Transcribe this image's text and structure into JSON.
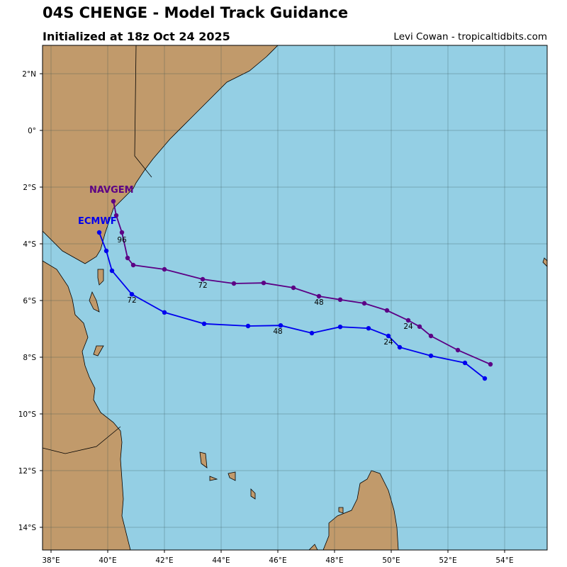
{
  "header": {
    "title": "04S CHENGE - Model Track Guidance",
    "subtitle": "Initialized at 18z Oct 24 2025",
    "credit": "Levi Cowan - tropicaltidbits.com"
  },
  "colors": {
    "ocean": "#94cfe4",
    "land": "#c19a6b",
    "grid": "#2f4f4f"
  },
  "map": {
    "lon_range": [
      37.7,
      55.5
    ],
    "lat_range": [
      -14.8,
      3.0
    ],
    "lon_ticks": [
      {
        "value": 38,
        "label": "38°E"
      },
      {
        "value": 40,
        "label": "40°E"
      },
      {
        "value": 42,
        "label": "42°E"
      },
      {
        "value": 44,
        "label": "44°E"
      },
      {
        "value": 46,
        "label": "46°E"
      },
      {
        "value": 48,
        "label": "48°E"
      },
      {
        "value": 50,
        "label": "50°E"
      },
      {
        "value": 52,
        "label": "52°E"
      },
      {
        "value": 54,
        "label": "54°E"
      }
    ],
    "lat_ticks": [
      {
        "value": 2,
        "label": "2°N"
      },
      {
        "value": 0,
        "label": "0°"
      },
      {
        "value": -2,
        "label": "2°S"
      },
      {
        "value": -4,
        "label": "4°S"
      },
      {
        "value": -6,
        "label": "6°S"
      },
      {
        "value": -8,
        "label": "8°S"
      },
      {
        "value": -10,
        "label": "10°S"
      },
      {
        "value": -12,
        "label": "12°S"
      },
      {
        "value": -14,
        "label": "14°S"
      }
    ],
    "coastline": [
      [
        37.7,
        -3.55
      ],
      [
        38.4,
        -4.25
      ],
      [
        39.2,
        -4.7
      ],
      [
        39.6,
        -4.45
      ],
      [
        39.75,
        -4.2
      ],
      [
        39.9,
        -3.65
      ],
      [
        40.05,
        -3.2
      ],
      [
        40.2,
        -2.75
      ],
      [
        40.55,
        -2.4
      ],
      [
        40.9,
        -2.05
      ],
      [
        41.0,
        -1.85
      ],
      [
        41.3,
        -1.4
      ],
      [
        41.6,
        -1.0
      ],
      [
        42.2,
        -0.3
      ],
      [
        42.9,
        0.4
      ],
      [
        43.5,
        1.0
      ],
      [
        44.2,
        1.7
      ],
      [
        45.0,
        2.1
      ],
      [
        45.6,
        2.6
      ],
      [
        46.0,
        3.0
      ],
      [
        37.7,
        3.0
      ]
    ],
    "coastline_south": [
      [
        37.7,
        -4.6
      ],
      [
        38.2,
        -4.9
      ],
      [
        38.6,
        -5.5
      ],
      [
        38.75,
        -5.95
      ],
      [
        38.85,
        -6.5
      ],
      [
        39.15,
        -6.8
      ],
      [
        39.3,
        -7.3
      ],
      [
        39.1,
        -7.8
      ],
      [
        39.2,
        -8.3
      ],
      [
        39.35,
        -8.7
      ],
      [
        39.55,
        -9.1
      ],
      [
        39.5,
        -9.5
      ],
      [
        39.75,
        -9.95
      ],
      [
        40.2,
        -10.3
      ],
      [
        40.45,
        -10.6
      ],
      [
        40.5,
        -11.0
      ],
      [
        40.45,
        -11.6
      ],
      [
        40.5,
        -12.3
      ],
      [
        40.55,
        -13.0
      ],
      [
        40.5,
        -13.6
      ],
      [
        40.65,
        -14.2
      ],
      [
        40.8,
        -14.8
      ],
      [
        37.7,
        -14.8
      ]
    ],
    "islands": [
      [
        [
          39.65,
          -4.9
        ],
        [
          39.85,
          -4.9
        ],
        [
          39.85,
          -5.3
        ],
        [
          39.7,
          -5.45
        ],
        [
          39.65,
          -5.2
        ]
      ],
      [
        [
          39.45,
          -5.7
        ],
        [
          39.6,
          -6.0
        ],
        [
          39.7,
          -6.4
        ],
        [
          39.5,
          -6.3
        ],
        [
          39.35,
          -6.0
        ]
      ],
      [
        [
          39.6,
          -7.6
        ],
        [
          39.85,
          -7.6
        ],
        [
          39.65,
          -7.95
        ],
        [
          39.5,
          -7.9
        ]
      ],
      [
        [
          43.25,
          -11.35
        ],
        [
          43.45,
          -11.4
        ],
        [
          43.5,
          -11.9
        ],
        [
          43.3,
          -11.75
        ]
      ],
      [
        [
          43.6,
          -12.2
        ],
        [
          43.85,
          -12.3
        ],
        [
          43.6,
          -12.35
        ]
      ],
      [
        [
          44.25,
          -12.1
        ],
        [
          44.5,
          -12.05
        ],
        [
          44.5,
          -12.35
        ],
        [
          44.3,
          -12.25
        ]
      ],
      [
        [
          45.05,
          -12.65
        ],
        [
          45.2,
          -12.8
        ],
        [
          45.2,
          -13.0
        ],
        [
          45.05,
          -12.9
        ]
      ],
      [
        [
          48.15,
          -13.3
        ],
        [
          48.3,
          -13.3
        ],
        [
          48.3,
          -13.5
        ],
        [
          48.15,
          -13.45
        ]
      ],
      [
        [
          49.3,
          -12.0
        ],
        [
          49.6,
          -12.1
        ],
        [
          49.9,
          -12.7
        ],
        [
          50.1,
          -13.4
        ],
        [
          50.2,
          -14.0
        ],
        [
          50.25,
          -14.8
        ],
        [
          47.6,
          -14.8
        ],
        [
          47.8,
          -14.3
        ],
        [
          47.8,
          -13.85
        ],
        [
          48.1,
          -13.6
        ],
        [
          48.6,
          -13.4
        ],
        [
          48.8,
          -13.0
        ],
        [
          48.9,
          -12.45
        ],
        [
          49.15,
          -12.3
        ]
      ],
      [
        [
          47.1,
          -14.8
        ],
        [
          47.3,
          -14.6
        ],
        [
          47.4,
          -14.8
        ]
      ],
      [
        [
          55.4,
          -4.5
        ],
        [
          55.5,
          -4.6
        ],
        [
          55.5,
          -4.8
        ],
        [
          55.35,
          -4.65
        ]
      ]
    ],
    "borders": [
      [
        [
          41.0,
          3.0
        ],
        [
          40.95,
          -0.9
        ],
        [
          41.55,
          -1.65
        ]
      ],
      [
        [
          37.7,
          -11.2
        ],
        [
          38.5,
          -11.4
        ],
        [
          39.6,
          -11.15
        ],
        [
          40.45,
          -10.45
        ]
      ]
    ]
  },
  "tracks": [
    {
      "name": "NAVGEM",
      "color": "#5c0085",
      "label_pos": [
        39.35,
        -2.2
      ],
      "points": [
        [
          40.2,
          -2.5
        ],
        [
          40.3,
          -3.0
        ],
        [
          40.5,
          -3.6
        ],
        [
          40.7,
          -4.5
        ],
        [
          40.9,
          -4.75
        ],
        [
          42.0,
          -4.9
        ],
        [
          43.35,
          -5.25
        ],
        [
          44.45,
          -5.4
        ],
        [
          45.5,
          -5.38
        ],
        [
          46.55,
          -5.55
        ],
        [
          47.45,
          -5.85
        ],
        [
          48.2,
          -5.97
        ],
        [
          49.05,
          -6.1
        ],
        [
          49.85,
          -6.35
        ],
        [
          50.6,
          -6.7
        ],
        [
          51.0,
          -6.92
        ],
        [
          51.4,
          -7.25
        ],
        [
          52.35,
          -7.75
        ],
        [
          53.5,
          -8.25
        ]
      ],
      "time_labels": [
        {
          "text": "96",
          "lon": 40.5,
          "lat": -3.95
        },
        {
          "text": "72",
          "lon": 43.35,
          "lat": -5.55
        },
        {
          "text": "48",
          "lon": 47.45,
          "lat": -6.15
        },
        {
          "text": "24",
          "lon": 50.6,
          "lat": -7.0
        }
      ]
    },
    {
      "name": "ECMWF",
      "color": "#0000ee",
      "label_pos": [
        38.95,
        -3.3
      ],
      "points": [
        [
          39.7,
          -3.6
        ],
        [
          39.95,
          -4.25
        ],
        [
          40.15,
          -4.95
        ],
        [
          40.85,
          -5.78
        ],
        [
          42.0,
          -6.42
        ],
        [
          43.4,
          -6.82
        ],
        [
          44.95,
          -6.9
        ],
        [
          46.1,
          -6.88
        ],
        [
          47.2,
          -7.15
        ],
        [
          48.2,
          -6.93
        ],
        [
          49.2,
          -6.98
        ],
        [
          49.9,
          -7.25
        ],
        [
          50.3,
          -7.65
        ],
        [
          51.4,
          -7.95
        ],
        [
          52.6,
          -8.2
        ],
        [
          53.3,
          -8.75
        ]
      ],
      "time_labels": [
        {
          "text": "72",
          "lon": 40.85,
          "lat": -6.07
        },
        {
          "text": "48",
          "lon": 46.0,
          "lat": -7.17
        },
        {
          "text": "24",
          "lon": 49.9,
          "lat": -7.55
        }
      ]
    }
  ]
}
